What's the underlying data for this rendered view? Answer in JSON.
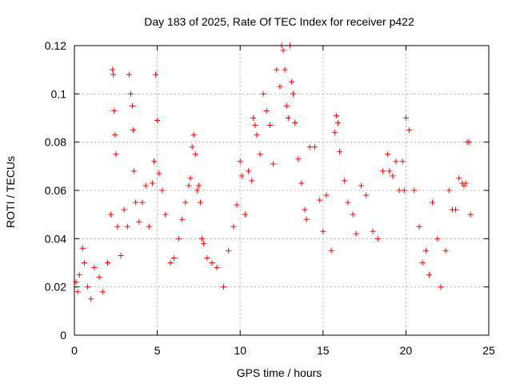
{
  "chart_data": {
    "type": "scatter",
    "title": "Day 183 of 2025, Rate Of TEC Index for receiver p422",
    "xlabel": "GPS time / hours",
    "ylabel": "ROTI / TECUs",
    "xlim": [
      0,
      25
    ],
    "ylim": [
      0,
      0.12
    ],
    "xticks": [
      0,
      5,
      10,
      15,
      20,
      25
    ],
    "yticks": [
      0,
      0.02,
      0.04,
      0.06,
      0.08,
      0.1,
      0.12
    ],
    "xtick_labels": [
      "0",
      "5",
      "10",
      "15",
      "20",
      "25"
    ],
    "ytick_labels": [
      "0",
      "0.02",
      "0.04",
      "0.06",
      "0.08",
      "0.1",
      "0.12"
    ],
    "grid": true,
    "marker": "+",
    "color": "#ff0000",
    "series": [
      {
        "x": [
          0.1,
          0.2,
          0.3,
          0.5,
          0.6,
          0.8,
          1.0,
          1.2,
          1.5,
          1.7,
          2.0,
          2.2,
          2.3,
          2.35,
          2.4,
          2.45,
          2.5,
          2.6,
          2.8,
          3.0,
          3.2,
          3.3,
          3.4,
          3.5,
          3.55,
          3.6,
          3.7,
          3.9,
          4.1,
          4.3,
          4.5,
          4.7,
          4.8,
          4.9,
          5.0,
          5.1,
          5.3,
          5.5,
          5.8,
          6.0,
          6.3,
          6.5,
          6.7,
          6.9,
          7.0,
          7.1,
          7.2,
          7.3,
          7.4,
          7.5,
          7.6,
          7.7,
          7.8,
          8.0,
          8.3,
          8.6,
          9.0,
          9.3,
          9.6,
          9.8,
          10.0,
          10.1,
          10.3,
          10.5,
          10.7,
          10.8,
          10.9,
          11.0,
          11.2,
          11.4,
          11.6,
          11.8,
          12.0,
          12.2,
          12.4,
          12.5,
          12.6,
          12.7,
          12.8,
          12.9,
          13.0,
          13.1,
          13.2,
          13.3,
          13.5,
          13.7,
          13.9,
          14.0,
          14.2,
          14.5,
          14.8,
          15.0,
          15.2,
          15.5,
          15.7,
          15.8,
          15.9,
          16.0,
          16.3,
          16.5,
          16.8,
          17.0,
          17.3,
          17.6,
          18.0,
          18.3,
          18.6,
          18.9,
          19.0,
          19.2,
          19.4,
          19.6,
          19.8,
          19.9,
          20.0,
          20.2,
          20.5,
          20.8,
          21.0,
          21.2,
          21.4,
          21.6,
          21.9,
          22.1,
          22.4,
          22.6,
          22.8,
          23.0,
          23.2,
          23.4,
          23.5,
          23.6,
          23.7,
          23.8,
          23.9
        ],
        "y": [
          0.022,
          0.018,
          0.025,
          0.036,
          0.03,
          0.02,
          0.015,
          0.028,
          0.024,
          0.018,
          0.03,
          0.05,
          0.11,
          0.108,
          0.093,
          0.083,
          0.075,
          0.045,
          0.033,
          0.052,
          0.045,
          0.108,
          0.1,
          0.095,
          0.085,
          0.068,
          0.055,
          0.047,
          0.055,
          0.062,
          0.045,
          0.063,
          0.072,
          0.108,
          0.089,
          0.067,
          0.06,
          0.05,
          0.03,
          0.032,
          0.04,
          0.048,
          0.055,
          0.062,
          0.065,
          0.078,
          0.083,
          0.075,
          0.06,
          0.062,
          0.055,
          0.04,
          0.038,
          0.032,
          0.03,
          0.028,
          0.02,
          0.035,
          0.045,
          0.054,
          0.072,
          0.066,
          0.05,
          0.068,
          0.064,
          0.09,
          0.087,
          0.083,
          0.075,
          0.1,
          0.093,
          0.087,
          0.071,
          0.11,
          0.103,
          0.12,
          0.118,
          0.11,
          0.095,
          0.09,
          0.12,
          0.105,
          0.1,
          0.088,
          0.073,
          0.063,
          0.052,
          0.048,
          0.078,
          0.078,
          0.056,
          0.043,
          0.058,
          0.035,
          0.084,
          0.091,
          0.088,
          0.076,
          0.064,
          0.055,
          0.05,
          0.042,
          0.062,
          0.058,
          0.043,
          0.04,
          0.068,
          0.075,
          0.068,
          0.066,
          0.072,
          0.06,
          0.072,
          0.06,
          0.09,
          0.085,
          0.06,
          0.045,
          0.03,
          0.035,
          0.025,
          0.055,
          0.04,
          0.02,
          0.035,
          0.06,
          0.052,
          0.052,
          0.065,
          0.063,
          0.062,
          0.063,
          0.08,
          0.08,
          0.05
        ]
      }
    ]
  }
}
